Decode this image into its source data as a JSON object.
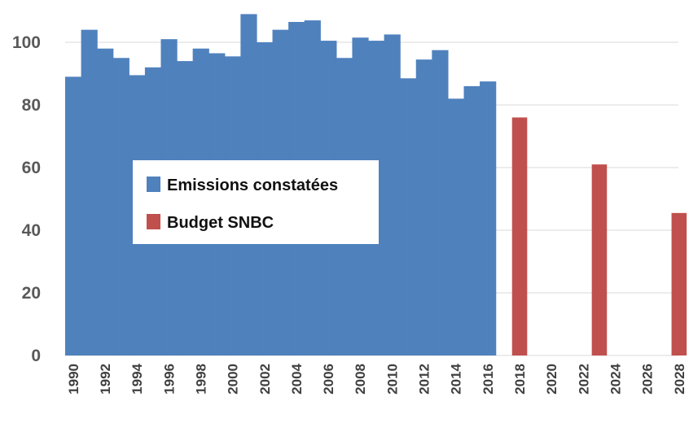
{
  "chart_data": {
    "type": "bar",
    "ylim": [
      0,
      110
    ],
    "yticks": [
      0,
      20,
      40,
      60,
      80,
      100
    ],
    "xtick_labels": [
      "1990",
      "1992",
      "1994",
      "1996",
      "1998",
      "2000",
      "2002",
      "2004",
      "2006",
      "2008",
      "2010",
      "2012",
      "2014",
      "2016",
      "2018",
      "2020",
      "2022",
      "2024",
      "2026",
      "2028"
    ],
    "grid": true,
    "legend_position": "center-left",
    "series": [
      {
        "name": "Emissions constatées",
        "color": "#4f81bd",
        "x": [
          1990,
          1991,
          1992,
          1993,
          1994,
          1995,
          1996,
          1997,
          1998,
          1999,
          2000,
          2001,
          2002,
          2003,
          2004,
          2005,
          2006,
          2007,
          2008,
          2009,
          2010,
          2011,
          2012,
          2013,
          2014,
          2015,
          2016
        ],
        "values": [
          89,
          104,
          98,
          95,
          89.5,
          92,
          101,
          94,
          98,
          96.5,
          95.5,
          109,
          100,
          104,
          106.5,
          107,
          100.5,
          95,
          101.5,
          100.5,
          102.5,
          88.5,
          94.5,
          97.5,
          82,
          86,
          87.5
        ]
      },
      {
        "name": "Budget SNBC",
        "color": "#c0504d",
        "x": [
          2018,
          2023,
          2028
        ],
        "values": [
          76,
          61,
          45.5
        ]
      }
    ]
  }
}
